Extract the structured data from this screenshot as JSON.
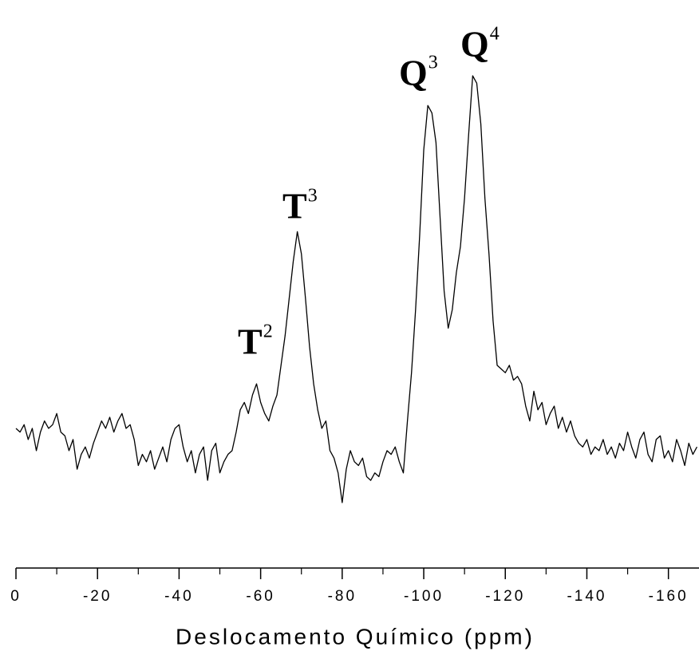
{
  "chart_data": {
    "type": "line",
    "x_label": "Deslocamento Químico (ppm)",
    "annotations": [
      {
        "text": "T",
        "sup": "2"
      },
      {
        "text": "T",
        "sup": "3"
      },
      {
        "text": "Q",
        "sup": "3"
      },
      {
        "text": "Q",
        "sup": "4"
      }
    ],
    "x": [
      0,
      -1,
      -2,
      -3,
      -4,
      -5,
      -6,
      -7,
      -8,
      -9,
      -10,
      -11,
      -12,
      -13,
      -14,
      -15,
      -16,
      -17,
      -18,
      -19,
      -20,
      -21,
      -22,
      -23,
      -24,
      -25,
      -26,
      -27,
      -28,
      -29,
      -30,
      -31,
      -32,
      -33,
      -34,
      -35,
      -36,
      -37,
      -38,
      -39,
      -40,
      -41,
      -42,
      -43,
      -44,
      -45,
      -46,
      -47,
      -48,
      -49,
      -50,
      -51,
      -52,
      -53,
      -54,
      -55,
      -56,
      -57,
      -58,
      -59,
      -60,
      -61,
      -62,
      -63,
      -64,
      -65,
      -66,
      -67,
      -68,
      -69,
      -70,
      -71,
      -72,
      -73,
      -74,
      -75,
      -76,
      -77,
      -78,
      -79,
      -80,
      -81,
      -82,
      -83,
      -84,
      -85,
      -86,
      -87,
      -88,
      -89,
      -90,
      -91,
      -92,
      -93,
      -94,
      -95,
      -96,
      -97,
      -98,
      -99,
      -100,
      -101,
      -102,
      -103,
      -104,
      -105,
      -106,
      -107,
      -108,
      -109,
      -110,
      -111,
      -112,
      -113,
      -114,
      -115,
      -116,
      -117,
      -118,
      -119,
      -120,
      -121,
      -122,
      -123,
      -124,
      -125,
      -126,
      -127,
      -128,
      -129,
      -130,
      -131,
      -132,
      -133,
      -134,
      -135,
      -136,
      -137,
      -138,
      -139,
      -140,
      -141,
      -142,
      -143,
      -144,
      -145,
      -146,
      -147,
      -148,
      -149,
      -150,
      -151,
      -152,
      -153,
      -154,
      -155,
      -156,
      -157,
      -158,
      -159,
      -160,
      -161,
      -162,
      -163,
      -164,
      -165,
      -166,
      -167
    ],
    "values": [
      3,
      2,
      4,
      0,
      3,
      -3,
      2,
      5,
      3,
      4,
      7,
      2,
      1,
      -3,
      0,
      -8,
      -4,
      -2,
      -5,
      -1,
      2,
      5,
      3,
      6,
      2,
      5,
      7,
      3,
      4,
      0,
      -7,
      -4,
      -6,
      -3,
      -8,
      -5,
      -2,
      -6,
      0,
      3,
      4,
      -2,
      -6,
      -3,
      -9,
      -4,
      -2,
      -11,
      -3,
      -1,
      -9,
      -6,
      -4,
      -3,
      2,
      8,
      10,
      7,
      12,
      15,
      10,
      7,
      5,
      9,
      12,
      20,
      28,
      38,
      48,
      56,
      50,
      38,
      25,
      15,
      8,
      3,
      5,
      -3,
      -5,
      -9,
      -17,
      -8,
      -3,
      -6,
      -7,
      -5,
      -10,
      -11,
      -9,
      -10,
      -6,
      -3,
      -4,
      -2,
      -6,
      -9,
      5,
      18,
      35,
      55,
      78,
      90,
      88,
      80,
      60,
      40,
      30,
      35,
      45,
      52,
      65,
      82,
      98,
      96,
      85,
      65,
      50,
      32,
      20,
      19,
      18,
      20,
      16,
      17,
      15,
      9,
      5,
      13,
      8,
      10,
      4,
      7,
      9,
      3,
      6,
      2,
      5,
      1,
      -1,
      -2,
      0,
      -4,
      -2,
      -3,
      0,
      -4,
      -2,
      -5,
      -1,
      -3,
      2,
      -2,
      -5,
      0,
      2,
      -4,
      -6,
      0,
      1,
      -5,
      -3,
      -6,
      0,
      -3,
      -7,
      -1,
      -4,
      -2
    ],
    "color": "#000000",
    "xlim": [
      0,
      -167.5
    ],
    "xticks": [
      0,
      -20,
      -40,
      -60,
      -80,
      -100,
      -120,
      -140,
      -160
    ],
    "xminorticks": [
      -10,
      -30,
      -50,
      -70,
      -90,
      -110,
      -130,
      -150
    ]
  }
}
